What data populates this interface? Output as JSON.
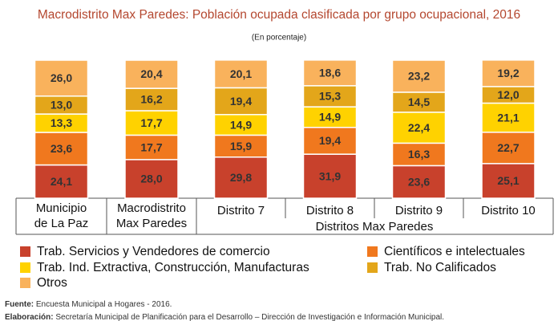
{
  "chart_data": {
    "type": "stacked_bar",
    "title": "Macrodistrito Max Paredes: Población ocupada clasificada por grupo ocupacional, 2016",
    "subtitle": "(En porcentaje)",
    "categories": [
      "Municipio\nde La Paz",
      "Macrodistrito\nMax Paredes",
      "Distrito 7",
      "Distrito 8",
      "Distrito 9",
      "Distrito 10"
    ],
    "group_label": "Distritos Max Paredes",
    "ylim": [
      0,
      100
    ],
    "series": [
      {
        "name": "Trab. Servicios y Vendedores de comercio",
        "color": "#c8412c",
        "values": [
          24.1,
          28.0,
          29.8,
          31.9,
          23.6,
          25.1
        ],
        "value_labels": [
          "24,1",
          "28,0",
          "29,8",
          "31,9",
          "23,6",
          "25,1"
        ]
      },
      {
        "name": "Científicos e intelectuales",
        "color": "#f0781e",
        "values": [
          23.6,
          17.7,
          15.9,
          19.4,
          16.3,
          22.7
        ],
        "value_labels": [
          "23,6",
          "17,7",
          "15,9",
          "19,4",
          "16,3",
          "22,7"
        ]
      },
      {
        "name": "Trab. Ind. Extractiva, Construcción, Manufacturas",
        "color": "#ffd200",
        "values": [
          13.3,
          17.7,
          14.9,
          14.9,
          22.4,
          21.1
        ],
        "value_labels": [
          "13,3",
          "17,7",
          "14,9",
          "14,9",
          "22,4",
          "21,1"
        ]
      },
      {
        "name": "Trab. No Calificados",
        "color": "#e3a61a",
        "values": [
          13.0,
          16.2,
          19.4,
          15.3,
          14.5,
          12.0
        ],
        "value_labels": [
          "13,0",
          "16,2",
          "19,4",
          "15,3",
          "14,5",
          "12,0"
        ]
      },
      {
        "name": "Otros",
        "color": "#f9b25c",
        "values": [
          26.0,
          20.4,
          20.1,
          18.6,
          23.2,
          19.2
        ],
        "value_labels": [
          "26,0",
          "20,4",
          "20,1",
          "18,6",
          "23,2",
          "19,2"
        ]
      }
    ]
  },
  "footer": {
    "source_label": "Fuente:",
    "source_text": "Encuesta Municipal a Hogares - 2016.",
    "credit_label": "Elaboración:",
    "credit_text": "Secretaría Municipal de Planificación para el Desarrollo – Dirección de Investigación e Información Municipal."
  }
}
